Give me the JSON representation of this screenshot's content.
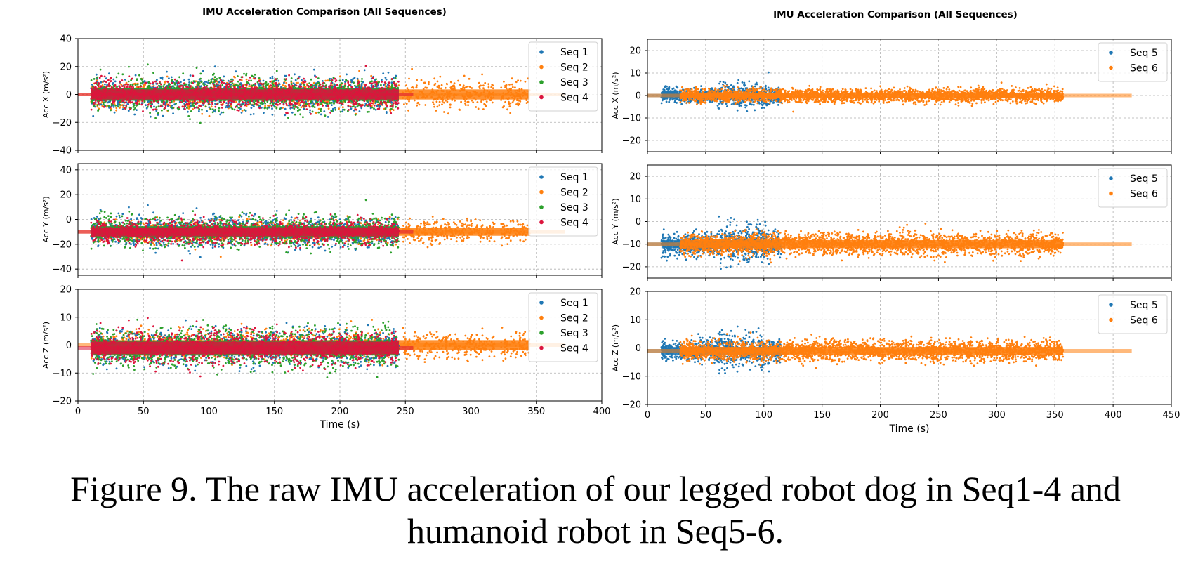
{
  "caption": "Figure 9.  The raw IMU acceleration of our legged robot dog in Seq1-4 and humanoid robot in Seq5-6.",
  "colors": {
    "Seq 1": "#1f77b4",
    "Seq 2": "#ff7f0e",
    "Seq 3": "#2ca02c",
    "Seq 4": "#dc143c",
    "Seq 5": "#1f77b4",
    "Seq 6": "#ff7f0e"
  },
  "chart_data": [
    {
      "type": "scatter",
      "title": "IMU Acceleration Comparison (All Sequences)",
      "xlabel": "Time (s)",
      "xlim": [
        0,
        400
      ],
      "xticks": [
        "0",
        "50",
        "100",
        "150",
        "200",
        "250",
        "300",
        "350",
        "400"
      ],
      "legend_position": "upper-right",
      "grid": true,
      "subplots": [
        {
          "ylabel": "Acc X (m/s²)",
          "ylim": [
            -40,
            40
          ],
          "yticks": [
            "−40",
            "−20",
            "0",
            "20",
            "40"
          ],
          "series": [
            {
              "name": "Seq 1",
              "t_range": [
                10,
                245
              ],
              "mean": 0,
              "spread": 10
            },
            {
              "name": "Seq 2",
              "t_range": [
                0,
                372
              ],
              "mean": 0,
              "spread": 8
            },
            {
              "name": "Seq 3",
              "t_range": [
                10,
                245
              ],
              "mean": 0,
              "spread": 10
            },
            {
              "name": "Seq 4",
              "t_range": [
                0,
                256
              ],
              "mean": 0,
              "spread": 8
            }
          ]
        },
        {
          "ylabel": "Acc Y (m/s²)",
          "ylim": [
            -45,
            45
          ],
          "yticks": [
            "−40",
            "−20",
            "0",
            "20",
            "40"
          ],
          "series": [
            {
              "name": "Seq 1",
              "t_range": [
                10,
                245
              ],
              "mean": -10,
              "spread": 10
            },
            {
              "name": "Seq 2",
              "t_range": [
                0,
                372
              ],
              "mean": -10,
              "spread": 7
            },
            {
              "name": "Seq 3",
              "t_range": [
                10,
                245
              ],
              "mean": -10,
              "spread": 10
            },
            {
              "name": "Seq 4",
              "t_range": [
                0,
                256
              ],
              "mean": -10,
              "spread": 8
            }
          ]
        },
        {
          "ylabel": "Acc Z (m/s²)",
          "ylim": [
            -20,
            20
          ],
          "yticks": [
            "−20",
            "−10",
            "0",
            "10",
            "20"
          ],
          "series": [
            {
              "name": "Seq 1",
              "t_range": [
                10,
                245
              ],
              "mean": -1,
              "spread": 5
            },
            {
              "name": "Seq 2",
              "t_range": [
                0,
                372
              ],
              "mean": 0,
              "spread": 4
            },
            {
              "name": "Seq 3",
              "t_range": [
                10,
                245
              ],
              "mean": -1,
              "spread": 6
            },
            {
              "name": "Seq 4",
              "t_range": [
                0,
                256
              ],
              "mean": -1,
              "spread": 5
            }
          ]
        }
      ]
    },
    {
      "type": "scatter",
      "title": "IMU Acceleration Comparison (All Sequences)",
      "xlabel": "Time (s)",
      "xlim": [
        0,
        450
      ],
      "xticks": [
        "0",
        "50",
        "100",
        "150",
        "200",
        "250",
        "300",
        "350",
        "400",
        "450"
      ],
      "legend_position": "upper-right",
      "grid": true,
      "subplots": [
        {
          "ylabel": "Acc X (m/s²)",
          "ylim": [
            -25,
            25
          ],
          "yticks": [
            "−20",
            "−10",
            "0",
            "10",
            "20"
          ],
          "series": [
            {
              "name": "Seq 5",
              "t_range": [
                0,
                115
              ],
              "mean": 0,
              "spread": 2.5
            },
            {
              "name": "Seq 6",
              "t_range": [
                0,
                416
              ],
              "mean": 0,
              "spread": 2.5
            }
          ]
        },
        {
          "ylabel": "Acc Y (m/s²)",
          "ylim": [
            -25,
            25
          ],
          "yticks": [
            "−20",
            "−10",
            "0",
            "10",
            "20"
          ],
          "series": [
            {
              "name": "Seq 5",
              "t_range": [
                0,
                115
              ],
              "mean": -10,
              "spread": 4
            },
            {
              "name": "Seq 6",
              "t_range": [
                0,
                416
              ],
              "mean": -10,
              "spread": 4
            }
          ]
        },
        {
          "ylabel": "Acc Z (m/s²)",
          "ylim": [
            -20,
            20
          ],
          "yticks": [
            "−20",
            "−10",
            "0",
            "10",
            "20"
          ],
          "series": [
            {
              "name": "Seq 5",
              "t_range": [
                0,
                115
              ],
              "mean": -1,
              "spread": 3
            },
            {
              "name": "Seq 6",
              "t_range": [
                0,
                416
              ],
              "mean": -1,
              "spread": 3
            }
          ]
        }
      ]
    }
  ]
}
